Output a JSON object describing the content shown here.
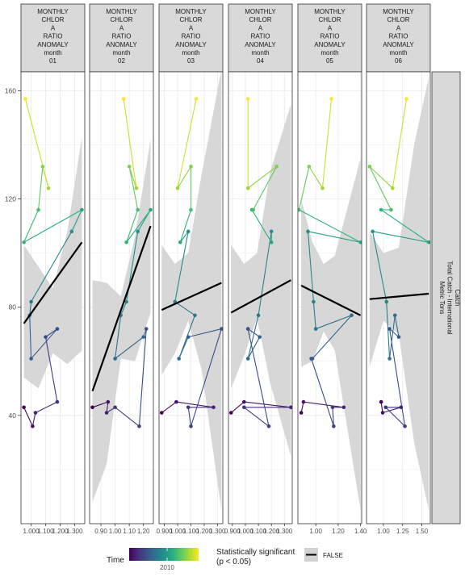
{
  "colors": {
    "strip_fill": "#d9d9d9",
    "strip_border": "#333333",
    "panel_border": "#333333",
    "grid": "#ebebeb",
    "ribbon": "#d3d3d3",
    "trend": "#000000",
    "viridis": [
      "#440154",
      "#472d7b",
      "#3b528b",
      "#2c728e",
      "#21918c",
      "#28ae80",
      "#5ec962",
      "#addc30",
      "#fde725"
    ]
  },
  "legend": {
    "time_title": "Time",
    "time_tick": "2010",
    "sig_title": "Statistically significant\n(p < 0.05)",
    "sig_key": "FALSE"
  },
  "chart_data": {
    "type": "scatter",
    "facet_strip_right": "Catch\nTotal Catch - International\nMetric Tons",
    "y_ticks": [
      40,
      80,
      120,
      160
    ],
    "ylim": [
      0,
      167
    ],
    "grid": true,
    "legend_position": "bottom",
    "trend_significant": "FALSE",
    "panels": [
      {
        "title": "MONTHLY\nCHLOR\nA\nRATIO\nANOMALY\nmonth\n01",
        "xlim": [
          0.93,
          1.37
        ],
        "x_ticks": [
          1.0,
          1.1,
          1.2,
          1.3
        ],
        "x_tick_labels": [
          "1.000",
          "1.100",
          "1.200",
          "1.300"
        ],
        "points": [
          {
            "x": 0.95,
            "y": 43,
            "t": 0.0
          },
          {
            "x": 1.01,
            "y": 36,
            "t": 0.05
          },
          {
            "x": 1.03,
            "y": 41,
            "t": 0.1
          },
          {
            "x": 1.18,
            "y": 45,
            "t": 0.15
          },
          {
            "x": 1.1,
            "y": 69,
            "t": 0.2
          },
          {
            "x": 1.18,
            "y": 72,
            "t": 0.25
          },
          {
            "x": 1.0,
            "y": 61,
            "t": 0.3
          },
          {
            "x": 0.99,
            "y": 77,
            "t": 0.35
          },
          {
            "x": 1.0,
            "y": 82,
            "t": 0.4
          },
          {
            "x": 1.28,
            "y": 108,
            "t": 0.5
          },
          {
            "x": 1.35,
            "y": 116,
            "t": 0.6
          },
          {
            "x": 0.95,
            "y": 104,
            "t": 0.65
          },
          {
            "x": 1.05,
            "y": 116,
            "t": 0.7
          },
          {
            "x": 1.08,
            "y": 132,
            "t": 0.8
          },
          {
            "x": 1.12,
            "y": 124,
            "t": 0.85
          },
          {
            "x": 0.96,
            "y": 157,
            "t": 1.0
          }
        ],
        "trend": [
          [
            0.95,
            74
          ],
          [
            1.35,
            104
          ]
        ],
        "ribbon": [
          [
            0.95,
            103,
            54
          ],
          [
            1.05,
            95,
            50
          ],
          [
            1.15,
            87,
            63
          ],
          [
            1.25,
            108,
            59
          ],
          [
            1.35,
            143,
            64
          ]
        ]
      },
      {
        "title": "MONTHLY\nCHLOR\nA\nRATIO\nANOMALY\nmonth\n02",
        "xlim": [
          0.82,
          1.27
        ],
        "x_ticks": [
          0.9,
          1.0,
          1.1,
          1.2
        ],
        "x_tick_labels": [
          "0.90",
          "1.00",
          "1.10",
          "1.20"
        ],
        "points": [
          {
            "x": 0.84,
            "y": 43,
            "t": 0.0
          },
          {
            "x": 0.95,
            "y": 45,
            "t": 0.05
          },
          {
            "x": 0.94,
            "y": 41,
            "t": 0.1
          },
          {
            "x": 1.0,
            "y": 43,
            "t": 0.15
          },
          {
            "x": 1.17,
            "y": 36,
            "t": 0.2
          },
          {
            "x": 1.22,
            "y": 72,
            "t": 0.25
          },
          {
            "x": 1.2,
            "y": 69,
            "t": 0.3
          },
          {
            "x": 1.0,
            "y": 61,
            "t": 0.35
          },
          {
            "x": 1.04,
            "y": 77,
            "t": 0.4
          },
          {
            "x": 1.08,
            "y": 82,
            "t": 0.45
          },
          {
            "x": 1.16,
            "y": 108,
            "t": 0.5
          },
          {
            "x": 1.25,
            "y": 116,
            "t": 0.6
          },
          {
            "x": 1.08,
            "y": 104,
            "t": 0.65
          },
          {
            "x": 1.16,
            "y": 116,
            "t": 0.7
          },
          {
            "x": 1.1,
            "y": 132,
            "t": 0.8
          },
          {
            "x": 1.15,
            "y": 124,
            "t": 0.85
          },
          {
            "x": 1.06,
            "y": 157,
            "t": 1.0
          }
        ],
        "trend": [
          [
            0.84,
            49
          ],
          [
            1.25,
            110
          ]
        ],
        "ribbon": [
          [
            0.84,
            90,
            8
          ],
          [
            0.94,
            89,
            22
          ],
          [
            1.04,
            84,
            61
          ],
          [
            1.14,
            106,
            60
          ],
          [
            1.25,
            142,
            78
          ]
        ]
      },
      {
        "title": "MONTHLY\nCHLOR\nA\nRATIO\nANOMALY\nmonth\n03",
        "xlim": [
          0.86,
          1.34
        ],
        "x_ticks": [
          0.9,
          1.0,
          1.1,
          1.2,
          1.3
        ],
        "x_tick_labels": [
          "0.900",
          "1.000",
          "1.100",
          "1.200",
          "1.300"
        ],
        "points": [
          {
            "x": 0.88,
            "y": 41,
            "t": 0.0
          },
          {
            "x": 0.99,
            "y": 45,
            "t": 0.05
          },
          {
            "x": 1.27,
            "y": 43,
            "t": 0.1
          },
          {
            "x": 1.08,
            "y": 43,
            "t": 0.15
          },
          {
            "x": 1.1,
            "y": 36,
            "t": 0.2
          },
          {
            "x": 1.33,
            "y": 72,
            "t": 0.25
          },
          {
            "x": 1.08,
            "y": 69,
            "t": 0.3
          },
          {
            "x": 1.01,
            "y": 61,
            "t": 0.35
          },
          {
            "x": 1.13,
            "y": 77,
            "t": 0.4
          },
          {
            "x": 0.98,
            "y": 82,
            "t": 0.45
          },
          {
            "x": 1.08,
            "y": 108,
            "t": 0.5
          },
          {
            "x": 1.02,
            "y": 104,
            "t": 0.6
          },
          {
            "x": 1.1,
            "y": 116,
            "t": 0.7
          },
          {
            "x": 1.1,
            "y": 132,
            "t": 0.8
          },
          {
            "x": 1.0,
            "y": 124,
            "t": 0.85
          },
          {
            "x": 1.14,
            "y": 157,
            "t": 1.0
          }
        ],
        "trend": [
          [
            0.88,
            79
          ],
          [
            1.33,
            89
          ]
        ],
        "ribbon": [
          [
            0.88,
            103,
            55
          ],
          [
            0.98,
            96,
            63
          ],
          [
            1.08,
            100,
            75
          ],
          [
            1.18,
            129,
            57
          ],
          [
            1.33,
            168,
            5
          ]
        ]
      },
      {
        "title": "MONTHLY\nCHLOR\nA\nRATIO\nANOMALY\nmonth\n04",
        "xlim": [
          0.87,
          1.36
        ],
        "x_ticks": [
          0.9,
          1.0,
          1.1,
          1.2,
          1.3
        ],
        "x_tick_labels": [
          "0.900",
          "1.000",
          "1.100",
          "1.200",
          "1.300"
        ],
        "points": [
          {
            "x": 0.89,
            "y": 41,
            "t": 0.0
          },
          {
            "x": 0.99,
            "y": 45,
            "t": 0.05
          },
          {
            "x": 1.35,
            "y": 43,
            "t": 0.1
          },
          {
            "x": 0.99,
            "y": 43,
            "t": 0.15
          },
          {
            "x": 1.18,
            "y": 36,
            "t": 0.2
          },
          {
            "x": 1.02,
            "y": 72,
            "t": 0.25
          },
          {
            "x": 1.11,
            "y": 69,
            "t": 0.3
          },
          {
            "x": 1.02,
            "y": 61,
            "t": 0.35
          },
          {
            "x": 1.1,
            "y": 77,
            "t": 0.4
          },
          {
            "x": 1.2,
            "y": 108,
            "t": 0.5
          },
          {
            "x": 1.2,
            "y": 104,
            "t": 0.6
          },
          {
            "x": 1.05,
            "y": 116,
            "t": 0.65
          },
          {
            "x": 1.06,
            "y": 116,
            "t": 0.7
          },
          {
            "x": 1.24,
            "y": 132,
            "t": 0.8
          },
          {
            "x": 1.02,
            "y": 124,
            "t": 0.85
          },
          {
            "x": 1.02,
            "y": 157,
            "t": 1.0
          }
        ],
        "trend": [
          [
            0.89,
            78
          ],
          [
            1.35,
            90
          ]
        ],
        "ribbon": [
          [
            0.89,
            103,
            50
          ],
          [
            0.99,
            96,
            62
          ],
          [
            1.09,
            100,
            76
          ],
          [
            1.19,
            130,
            52
          ],
          [
            1.35,
            155,
            25
          ]
        ]
      },
      {
        "title": "MONTHLY\nCHLOR\nA\nRATIO\nANOMALY\nmonth\n05",
        "xlim": [
          0.84,
          1.41
        ],
        "x_ticks": [
          1.0,
          1.2,
          1.4
        ],
        "x_tick_labels": [
          "1.00",
          "1.20",
          "1.40"
        ],
        "points": [
          {
            "x": 0.87,
            "y": 41,
            "t": 0.0
          },
          {
            "x": 0.89,
            "y": 45,
            "t": 0.05
          },
          {
            "x": 1.25,
            "y": 43,
            "t": 0.1
          },
          {
            "x": 1.15,
            "y": 43,
            "t": 0.15
          },
          {
            "x": 1.16,
            "y": 36,
            "t": 0.2
          },
          {
            "x": 0.96,
            "y": 61,
            "t": 0.25
          },
          {
            "x": 0.97,
            "y": 61,
            "t": 0.3
          },
          {
            "x": 1.32,
            "y": 77,
            "t": 0.35
          },
          {
            "x": 1.0,
            "y": 72,
            "t": 0.4
          },
          {
            "x": 0.98,
            "y": 82,
            "t": 0.45
          },
          {
            "x": 0.93,
            "y": 108,
            "t": 0.5
          },
          {
            "x": 1.4,
            "y": 104,
            "t": 0.6
          },
          {
            "x": 0.85,
            "y": 116,
            "t": 0.7
          },
          {
            "x": 0.94,
            "y": 132,
            "t": 0.8
          },
          {
            "x": 1.06,
            "y": 124,
            "t": 0.85
          },
          {
            "x": 1.14,
            "y": 157,
            "t": 1.0
          }
        ],
        "trend": [
          [
            0.87,
            88
          ],
          [
            1.4,
            77
          ]
        ],
        "ribbon": [
          [
            0.87,
            120,
            58
          ],
          [
            0.97,
            104,
            60
          ],
          [
            1.07,
            96,
            71
          ],
          [
            1.17,
            99,
            64
          ],
          [
            1.4,
            135,
            5
          ]
        ]
      },
      {
        "title": "MONTHLY\nCHLOR\nA\nRATIO\nANOMALY\nmonth\n06",
        "xlim": [
          0.78,
          1.61
        ],
        "x_ticks": [
          1.0,
          1.25,
          1.5
        ],
        "x_tick_labels": [
          "1.00",
          "1.25",
          "1.50"
        ],
        "points": [
          {
            "x": 0.97,
            "y": 45,
            "t": 0.0
          },
          {
            "x": 0.99,
            "y": 41,
            "t": 0.05
          },
          {
            "x": 1.23,
            "y": 43,
            "t": 0.1
          },
          {
            "x": 1.03,
            "y": 43,
            "t": 0.15
          },
          {
            "x": 1.28,
            "y": 36,
            "t": 0.2
          },
          {
            "x": 1.08,
            "y": 72,
            "t": 0.25
          },
          {
            "x": 1.2,
            "y": 69,
            "t": 0.3
          },
          {
            "x": 1.15,
            "y": 77,
            "t": 0.35
          },
          {
            "x": 1.08,
            "y": 61,
            "t": 0.4
          },
          {
            "x": 1.04,
            "y": 82,
            "t": 0.45
          },
          {
            "x": 0.86,
            "y": 108,
            "t": 0.5
          },
          {
            "x": 1.59,
            "y": 104,
            "t": 0.6
          },
          {
            "x": 0.97,
            "y": 116,
            "t": 0.65
          },
          {
            "x": 1.1,
            "y": 116,
            "t": 0.7
          },
          {
            "x": 0.82,
            "y": 132,
            "t": 0.8
          },
          {
            "x": 1.12,
            "y": 124,
            "t": 0.85
          },
          {
            "x": 1.3,
            "y": 157,
            "t": 1.0
          }
        ],
        "trend": [
          [
            0.82,
            83
          ],
          [
            1.59,
            85
          ]
        ],
        "ribbon": [
          [
            0.82,
            108,
            58
          ],
          [
            1.0,
            100,
            75
          ],
          [
            1.2,
            102,
            70
          ],
          [
            1.4,
            140,
            30
          ],
          [
            1.59,
            165,
            5
          ]
        ]
      }
    ]
  }
}
